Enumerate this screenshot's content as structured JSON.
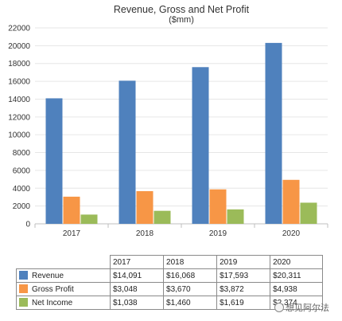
{
  "chart_data": {
    "type": "bar",
    "title": "Revenue, Gross and Net Profit",
    "subtitle": "($mm)",
    "categories": [
      "2017",
      "2018",
      "2019",
      "2020"
    ],
    "series": [
      {
        "name": "Revenue",
        "color": "#4f81bd",
        "values": [
          14091,
          16068,
          17593,
          20311
        ]
      },
      {
        "name": "Gross Profit",
        "color": "#f79646",
        "values": [
          3048,
          3670,
          3872,
          4938
        ]
      },
      {
        "name": "Net Income",
        "color": "#9bbb59",
        "values": [
          1038,
          1460,
          1619,
          2374
        ]
      }
    ],
    "ylim": [
      0,
      22000
    ],
    "yticks": [
      0,
      2000,
      4000,
      6000,
      8000,
      10000,
      12000,
      14000,
      16000,
      18000,
      20000,
      22000
    ],
    "grid": true,
    "xlabel": "",
    "ylabel": ""
  },
  "table": {
    "rows": [
      {
        "label": "Revenue",
        "cells": [
          "$14,091",
          "$16,068",
          "$17,593",
          "$20,311"
        ]
      },
      {
        "label": "Gross Profit",
        "cells": [
          "$3,048",
          "$3,670",
          "$3,872",
          "$4,938"
        ]
      },
      {
        "label": "Net Income",
        "cells": [
          "$1,038",
          "$1,460",
          "$1,619",
          "$2,374"
        ]
      }
    ]
  },
  "watermark": {
    "text": "想见阿尔法"
  }
}
